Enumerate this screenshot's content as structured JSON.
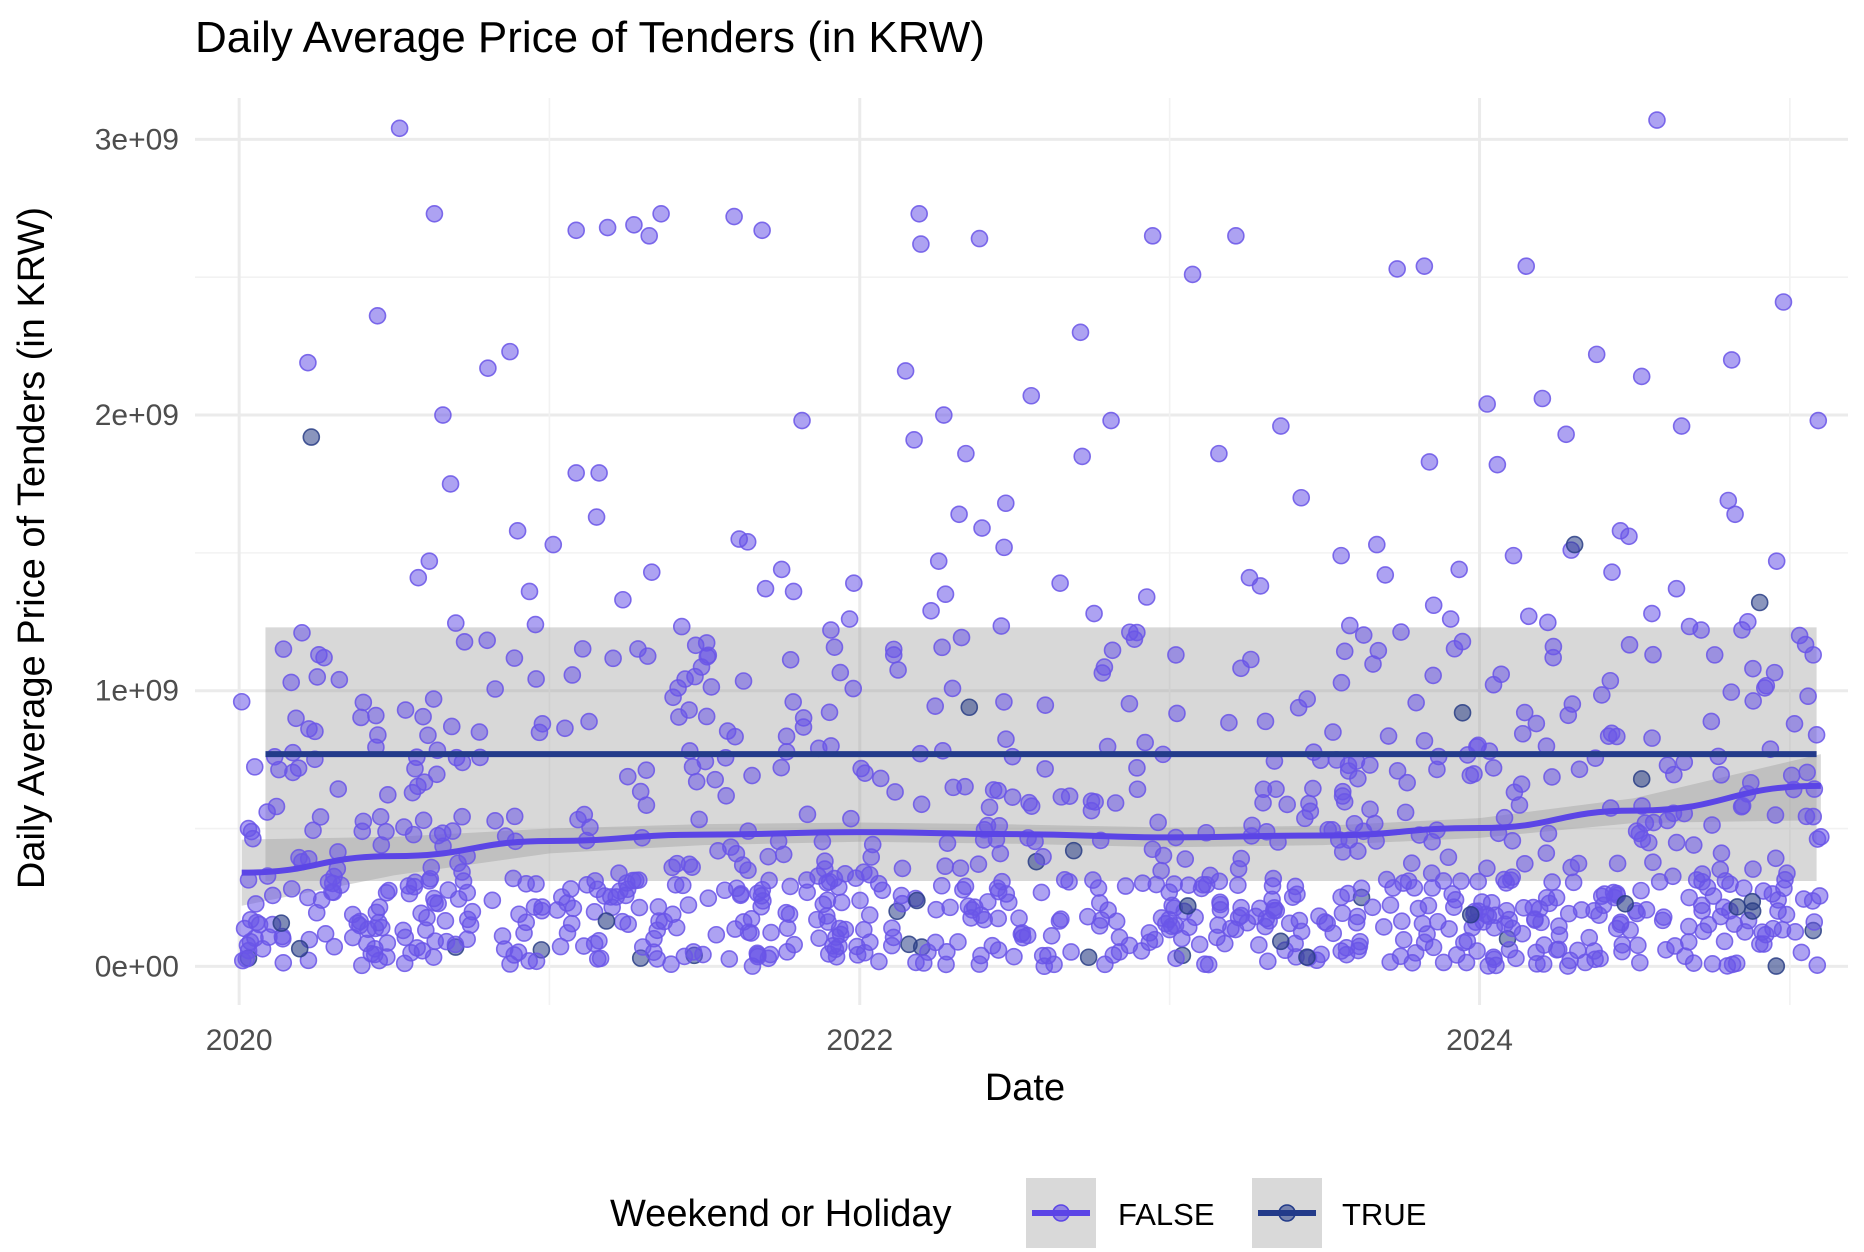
{
  "chart_data": {
    "type": "scatter",
    "title": "Daily Average Price of Tenders (in KRW)",
    "xlabel": "Date",
    "ylabel": "Daily Average Price of Tenders (in KRW)",
    "x_range": [
      "2019-11-10",
      "2025-03-10"
    ],
    "x_ticks": [
      "2020-01-01",
      "2022-01-01",
      "2024-01-01"
    ],
    "x_tick_labels": [
      "2020",
      "2022",
      "2024"
    ],
    "y_range": [
      -140000000,
      3150000000
    ],
    "y_ticks": [
      0,
      1000000000,
      2000000000,
      3000000000
    ],
    "y_tick_labels": [
      "0e+00",
      "1e+09",
      "2e+09",
      "3e+09"
    ],
    "grid": true,
    "legend": {
      "title": "Weekend or Holiday",
      "position": "bottom",
      "entries": [
        {
          "label": "FALSE",
          "color": "#5b45e6"
        },
        {
          "label": "TRUE",
          "color": "#233b8a"
        }
      ]
    },
    "series": [
      {
        "name": "FALSE",
        "color": "#6a55e8",
        "points": [
          [
            "2020-01-04",
            960000000
          ],
          [
            "2020-01-12",
            500000000
          ],
          [
            "2020-02-03",
            560000000
          ],
          [
            "2020-02-14",
            580000000
          ],
          [
            "2020-03-08",
            900000000
          ],
          [
            "2020-03-15",
            1210000000
          ],
          [
            "2020-03-22",
            2190000000
          ],
          [
            "2020-04-02",
            1050000000
          ],
          [
            "2020-04-10",
            1120000000
          ],
          [
            "2020-04-28",
            1040000000
          ],
          [
            "2020-05-25",
            490000000
          ],
          [
            "2020-06-10",
            910000000
          ],
          [
            "2020-06-12",
            2360000000
          ],
          [
            "2020-07-08",
            3040000000
          ],
          [
            "2020-07-15",
            930000000
          ],
          [
            "2020-07-30",
            1410000000
          ],
          [
            "2020-08-12",
            1470000000
          ],
          [
            "2020-08-18",
            2730000000
          ],
          [
            "2020-08-28",
            2000000000
          ],
          [
            "2020-09-06",
            1750000000
          ],
          [
            "2020-09-20",
            740000000
          ],
          [
            "2020-10-10",
            850000000
          ],
          [
            "2020-10-20",
            2170000000
          ],
          [
            "2020-11-15",
            2230000000
          ],
          [
            "2020-11-24",
            1580000000
          ],
          [
            "2020-12-08",
            1360000000
          ],
          [
            "2020-12-15",
            1240000000
          ],
          [
            "2021-01-05",
            1530000000
          ],
          [
            "2021-02-01",
            2670000000
          ],
          [
            "2021-02-01",
            1790000000
          ],
          [
            "2021-02-28",
            1790000000
          ],
          [
            "2021-02-25",
            1630000000
          ],
          [
            "2021-03-10",
            2680000000
          ],
          [
            "2021-03-28",
            1330000000
          ],
          [
            "2021-04-10",
            2690000000
          ],
          [
            "2021-04-28",
            2650000000
          ],
          [
            "2021-05-01",
            1430000000
          ],
          [
            "2021-05-12",
            2730000000
          ],
          [
            "2021-06-01",
            1010000000
          ],
          [
            "2021-06-14",
            930000000
          ],
          [
            "2021-08-06",
            2720000000
          ],
          [
            "2021-08-12",
            1550000000
          ],
          [
            "2021-08-22",
            1540000000
          ],
          [
            "2021-09-08",
            2670000000
          ],
          [
            "2021-09-12",
            1370000000
          ],
          [
            "2021-10-01",
            1440000000
          ],
          [
            "2021-10-15",
            1360000000
          ],
          [
            "2021-10-25",
            1980000000
          ],
          [
            "2021-11-28",
            1220000000
          ],
          [
            "2021-12-20",
            1260000000
          ],
          [
            "2021-12-25",
            1390000000
          ],
          [
            "2022-02-10",
            1150000000
          ],
          [
            "2022-02-24",
            2160000000
          ],
          [
            "2022-03-06",
            1910000000
          ],
          [
            "2022-03-12",
            2730000000
          ],
          [
            "2022-03-14",
            2620000000
          ],
          [
            "2022-03-26",
            1290000000
          ],
          [
            "2022-04-04",
            1470000000
          ],
          [
            "2022-04-10",
            2000000000
          ],
          [
            "2022-04-12",
            1350000000
          ],
          [
            "2022-04-28",
            1640000000
          ],
          [
            "2022-05-06",
            1860000000
          ],
          [
            "2022-05-22",
            2640000000
          ],
          [
            "2022-05-25",
            1590000000
          ],
          [
            "2022-06-20",
            1520000000
          ],
          [
            "2022-06-22",
            1680000000
          ],
          [
            "2022-07-22",
            2070000000
          ],
          [
            "2022-08-25",
            1390000000
          ],
          [
            "2022-09-18",
            2300000000
          ],
          [
            "2022-09-20",
            1850000000
          ],
          [
            "2022-10-04",
            1280000000
          ],
          [
            "2022-10-24",
            1980000000
          ],
          [
            "2022-12-05",
            1340000000
          ],
          [
            "2022-12-12",
            2650000000
          ],
          [
            "2023-01-28",
            2510000000
          ],
          [
            "2023-02-28",
            1860000000
          ],
          [
            "2023-03-20",
            2650000000
          ],
          [
            "2023-04-05",
            1410000000
          ],
          [
            "2023-04-18",
            1380000000
          ],
          [
            "2023-05-12",
            1960000000
          ],
          [
            "2023-06-05",
            1700000000
          ],
          [
            "2023-06-12",
            970000000
          ],
          [
            "2023-07-22",
            1490000000
          ],
          [
            "2023-09-02",
            1530000000
          ],
          [
            "2023-09-12",
            1420000000
          ],
          [
            "2023-09-26",
            2530000000
          ],
          [
            "2023-10-28",
            2540000000
          ],
          [
            "2023-11-03",
            1830000000
          ],
          [
            "2023-11-08",
            1310000000
          ],
          [
            "2023-11-28",
            1260000000
          ],
          [
            "2023-12-08",
            1440000000
          ],
          [
            "2024-01-10",
            2040000000
          ],
          [
            "2024-01-22",
            1820000000
          ],
          [
            "2024-02-10",
            1490000000
          ],
          [
            "2024-02-25",
            2540000000
          ],
          [
            "2024-02-28",
            1270000000
          ],
          [
            "2024-03-15",
            2060000000
          ],
          [
            "2024-03-28",
            1160000000
          ],
          [
            "2024-04-12",
            1930000000
          ],
          [
            "2024-04-18",
            1510000000
          ],
          [
            "2024-05-18",
            2220000000
          ],
          [
            "2024-06-05",
            1430000000
          ],
          [
            "2024-06-15",
            1580000000
          ],
          [
            "2024-06-25",
            1560000000
          ],
          [
            "2024-07-10",
            2140000000
          ],
          [
            "2024-07-22",
            1280000000
          ],
          [
            "2024-07-28",
            3070000000
          ],
          [
            "2024-08-20",
            1370000000
          ],
          [
            "2024-08-26",
            1960000000
          ],
          [
            "2024-09-18",
            1220000000
          ],
          [
            "2024-10-04",
            1130000000
          ],
          [
            "2024-10-20",
            1690000000
          ],
          [
            "2024-10-24",
            2200000000
          ],
          [
            "2024-10-28",
            1640000000
          ],
          [
            "2024-11-12",
            1250000000
          ],
          [
            "2024-11-18",
            1080000000
          ],
          [
            "2024-12-02",
            1010000000
          ],
          [
            "2024-12-16",
            1470000000
          ],
          [
            "2024-12-24",
            2410000000
          ],
          [
            "2025-01-06",
            880000000
          ],
          [
            "2025-01-12",
            1200000000
          ],
          [
            "2025-01-22",
            980000000
          ],
          [
            "2025-01-28",
            1130000000
          ],
          [
            "2025-02-03",
            1980000000
          ],
          [
            "2025-02-01",
            840000000
          ],
          [
            "2025-02-06",
            470000000
          ]
        ]
      },
      {
        "name": "TRUE",
        "color": "#2a3e86",
        "points": [
          [
            "2020-01-12",
            30000000
          ],
          [
            "2020-03-26",
            1920000000
          ],
          [
            "2020-09-12",
            70000000
          ],
          [
            "2020-12-22",
            60000000
          ],
          [
            "2021-04-18",
            30000000
          ],
          [
            "2021-06-20",
            40000000
          ],
          [
            "2022-02-14",
            200000000
          ],
          [
            "2022-02-28",
            80000000
          ],
          [
            "2022-03-15",
            70000000
          ],
          [
            "2022-05-10",
            940000000
          ],
          [
            "2022-07-28",
            380000000
          ],
          [
            "2022-09-10",
            420000000
          ],
          [
            "2023-01-16",
            40000000
          ],
          [
            "2023-08-15",
            250000000
          ],
          [
            "2023-12-12",
            920000000
          ],
          [
            "2024-02-03",
            100000000
          ],
          [
            "2024-04-22",
            1530000000
          ],
          [
            "2024-07-10",
            680000000
          ],
          [
            "2024-11-26",
            1320000000
          ],
          [
            "2025-01-28",
            130000000
          ]
        ]
      }
    ],
    "smooth_lines": [
      {
        "series": "FALSE",
        "color": "#5b45e6",
        "x": [
          "2020-01-04",
          "2020-07-01",
          "2021-01-01",
          "2021-07-01",
          "2022-01-01",
          "2022-07-01",
          "2023-01-01",
          "2023-07-01",
          "2024-01-01",
          "2024-07-01",
          "2025-02-06"
        ],
        "y": [
          340000000,
          400000000,
          455000000,
          478000000,
          487000000,
          480000000,
          468000000,
          475000000,
          502000000,
          565000000,
          655000000
        ],
        "lower": [
          220000000,
          330000000,
          410000000,
          440000000,
          452000000,
          445000000,
          432000000,
          440000000,
          466000000,
          520000000,
          530000000
        ],
        "upper": [
          460000000,
          470000000,
          500000000,
          516000000,
          522000000,
          515000000,
          504000000,
          510000000,
          538000000,
          610000000,
          770000000
        ]
      },
      {
        "series": "TRUE",
        "color": "#233b8a",
        "x": [
          "2020-02-01",
          "2025-02-01"
        ],
        "y": [
          770000000,
          770000000
        ],
        "lower": [
          310000000,
          310000000
        ],
        "upper": [
          1230000000,
          1230000000
        ]
      }
    ]
  }
}
